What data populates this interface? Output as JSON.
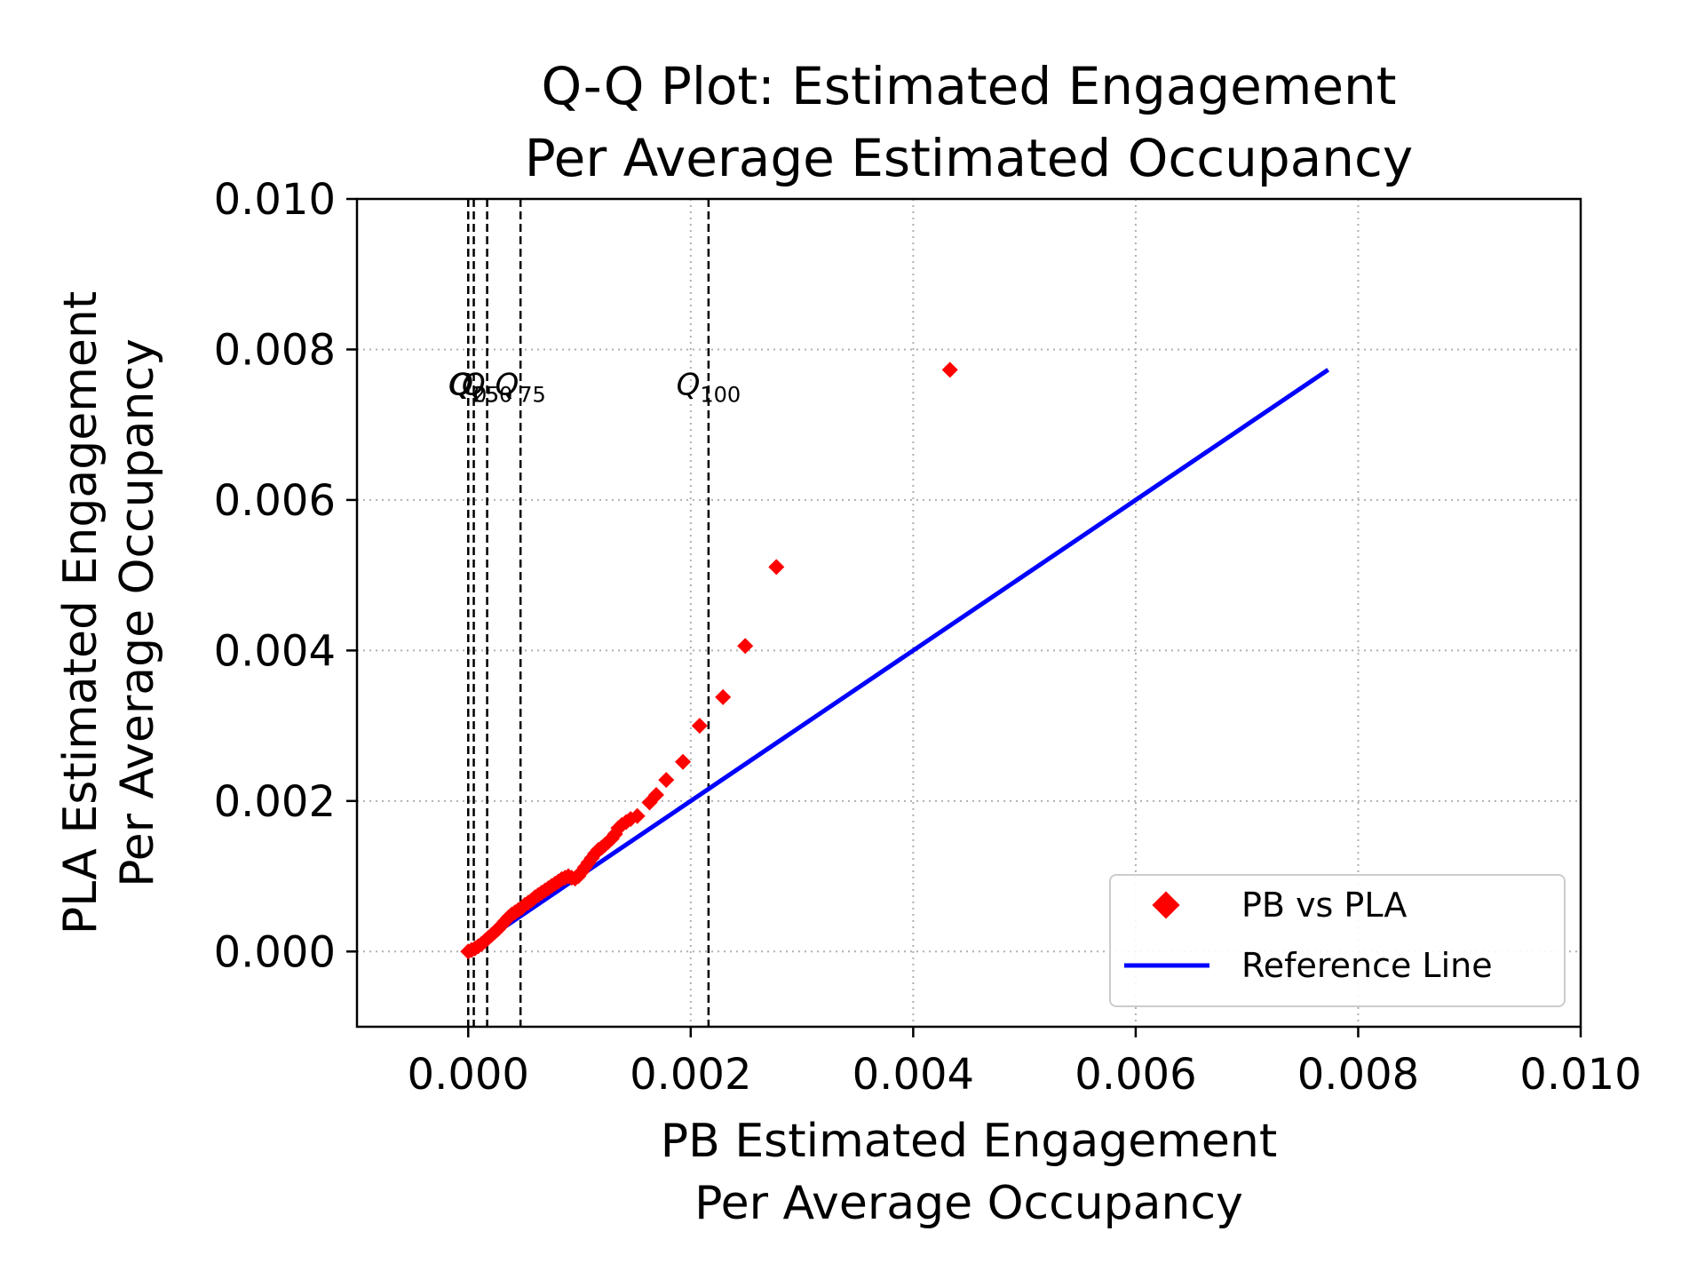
{
  "chart_data": {
    "type": "scatter",
    "title_lines": [
      "Q-Q Plot: Estimated Engagement",
      "Per Average Estimated Occupancy"
    ],
    "xlabel_lines": [
      "PB Estimated Engagement",
      "Per Average Occupancy"
    ],
    "ylabel_lines": [
      "PLA Estimated Engagement",
      "Per Average Occupancy"
    ],
    "xlim": [
      -0.001,
      0.01
    ],
    "ylim": [
      -0.001,
      0.01
    ],
    "xticks": [
      0.0,
      0.002,
      0.004,
      0.006,
      0.008,
      0.01
    ],
    "yticks": [
      0.0,
      0.002,
      0.004,
      0.006,
      0.008,
      0.01
    ],
    "xtick_labels": [
      "0.000",
      "0.002",
      "0.004",
      "0.006",
      "0.008",
      "0.010"
    ],
    "ytick_labels": [
      "0.000",
      "0.002",
      "0.004",
      "0.006",
      "0.008",
      "0.010"
    ],
    "grid": true,
    "legend_position": "lower-right",
    "series": [
      {
        "name": "PB vs PLA",
        "marker": "diamond",
        "color": "#ff0000",
        "points": [
          [
            0.0,
            0.0
          ],
          [
            3e-05,
            2e-05
          ],
          [
            6e-05,
            4e-05
          ],
          [
            9e-05,
            7e-05
          ],
          [
            0.00012,
            0.0001
          ],
          [
            0.00015,
            0.00014
          ],
          [
            0.00018,
            0.00018
          ],
          [
            0.00021,
            0.00022
          ],
          [
            0.00024,
            0.00026
          ],
          [
            0.00027,
            0.0003
          ],
          [
            0.0003,
            0.00035
          ],
          [
            0.00033,
            0.0004
          ],
          [
            0.00036,
            0.00045
          ],
          [
            0.00039,
            0.00049
          ],
          [
            0.00042,
            0.00052
          ],
          [
            0.00045,
            0.00055
          ],
          [
            0.00048,
            0.00058
          ],
          [
            0.00051,
            0.00062
          ],
          [
            0.00054,
            0.00065
          ],
          [
            0.00057,
            0.00068
          ],
          [
            0.0006,
            0.00072
          ],
          [
            0.00063,
            0.00075
          ],
          [
            0.00066,
            0.00078
          ],
          [
            0.00069,
            0.00081
          ],
          [
            0.00072,
            0.00084
          ],
          [
            0.00075,
            0.00087
          ],
          [
            0.00078,
            0.0009
          ],
          [
            0.00081,
            0.00093
          ],
          [
            0.00084,
            0.00096
          ],
          [
            0.00087,
            0.00098
          ],
          [
            0.0009,
            0.001
          ],
          [
            0.00093,
            0.00098
          ],
          [
            0.00096,
            0.00097
          ],
          [
            0.00099,
            0.001
          ],
          [
            0.00102,
            0.00106
          ],
          [
            0.00105,
            0.00112
          ],
          [
            0.00108,
            0.00118
          ],
          [
            0.00111,
            0.00124
          ],
          [
            0.00114,
            0.0013
          ],
          [
            0.00117,
            0.00135
          ],
          [
            0.0012,
            0.00138
          ],
          [
            0.00123,
            0.00142
          ],
          [
            0.00126,
            0.00146
          ],
          [
            0.00129,
            0.0015
          ],
          [
            0.00132,
            0.00156
          ],
          [
            0.00135,
            0.00164
          ],
          [
            0.00138,
            0.00168
          ],
          [
            0.00142,
            0.00172
          ],
          [
            0.00146,
            0.00176
          ],
          [
            0.00152,
            0.0018
          ],
          [
            0.00163,
            0.00198
          ],
          [
            0.00169,
            0.00208
          ],
          [
            0.00178,
            0.00228
          ],
          [
            0.00193,
            0.00252
          ],
          [
            0.00208,
            0.003
          ],
          [
            0.00229,
            0.00338
          ],
          [
            0.00249,
            0.00406
          ],
          [
            0.00277,
            0.00511
          ],
          [
            0.00433,
            0.00773
          ]
        ]
      },
      {
        "name": "Reference Line",
        "color": "#0000ff",
        "line": [
          [
            0.0,
            0.0
          ],
          [
            0.00773,
            0.00773
          ]
        ]
      }
    ],
    "quantiles": [
      {
        "label": "Q",
        "sub": "0",
        "x": 0.0
      },
      {
        "label": "Q",
        "sub": "25",
        "x": 5e-05
      },
      {
        "label": "Q",
        "sub": "50",
        "x": 0.00017
      },
      {
        "label": "Q",
        "sub": "75",
        "x": 0.00047
      },
      {
        "label": "Q",
        "sub": "100",
        "x": 0.00216
      }
    ]
  }
}
